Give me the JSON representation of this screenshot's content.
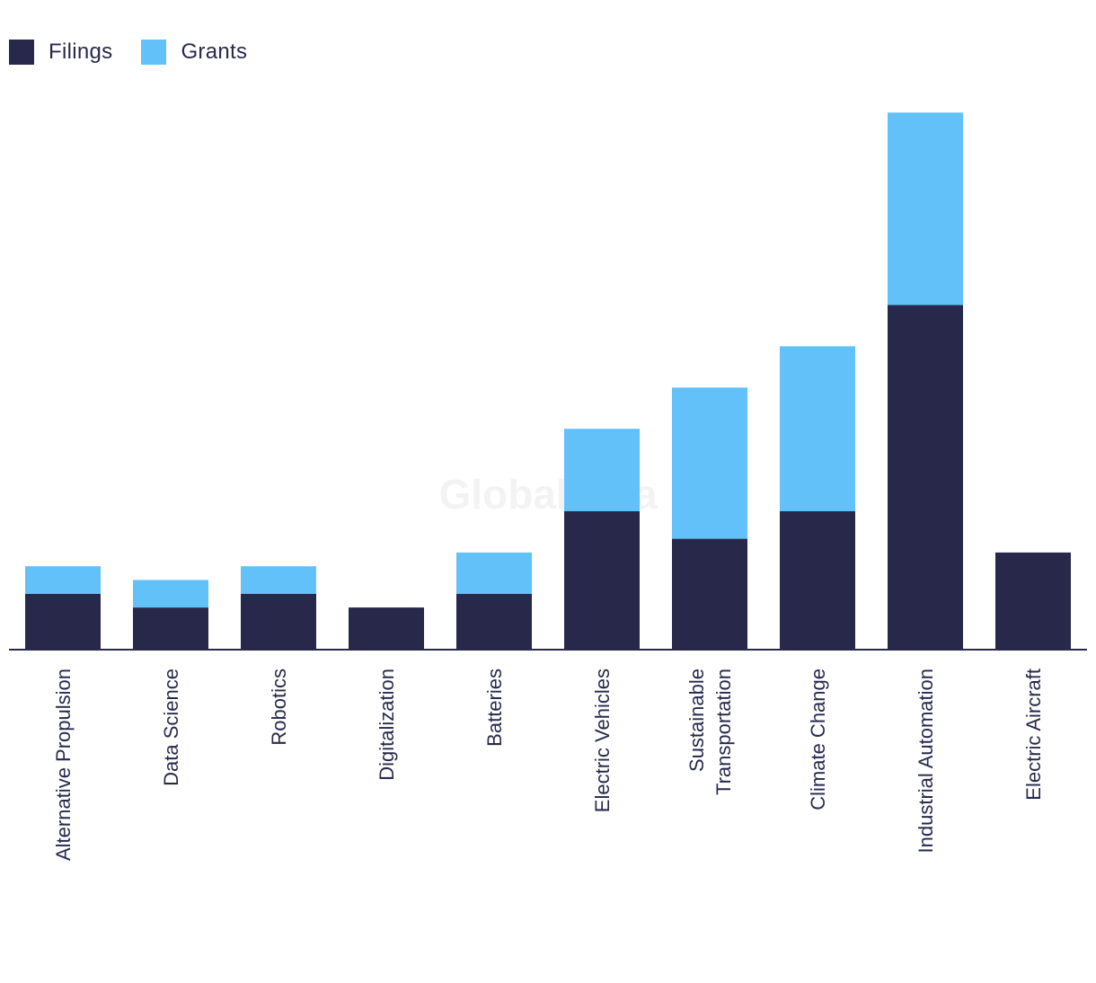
{
  "chart_data": {
    "type": "bar",
    "stacked": true,
    "title": "",
    "xlabel": "",
    "ylabel": "",
    "ylim": [
      0,
      40
    ],
    "grid": false,
    "legend_position": "top-left",
    "categories": [
      "Alternative Propulsion",
      "Data Science",
      "Robotics",
      "Digitalization",
      "Batteries",
      "Electric Vehicles",
      "Sustainable Transportation",
      "Climate Change",
      "Industrial Automation",
      "Electric Aircraft"
    ],
    "series": [
      {
        "name": "Filings",
        "color": "#27284a",
        "values": [
          4,
          3,
          4,
          3,
          4,
          10,
          8,
          10,
          25,
          7
        ]
      },
      {
        "name": "Grants",
        "color": "#62c1f9",
        "values": [
          2,
          2,
          2,
          0,
          3,
          6,
          11,
          12,
          14,
          0
        ]
      }
    ],
    "watermark": "GlobalData"
  }
}
